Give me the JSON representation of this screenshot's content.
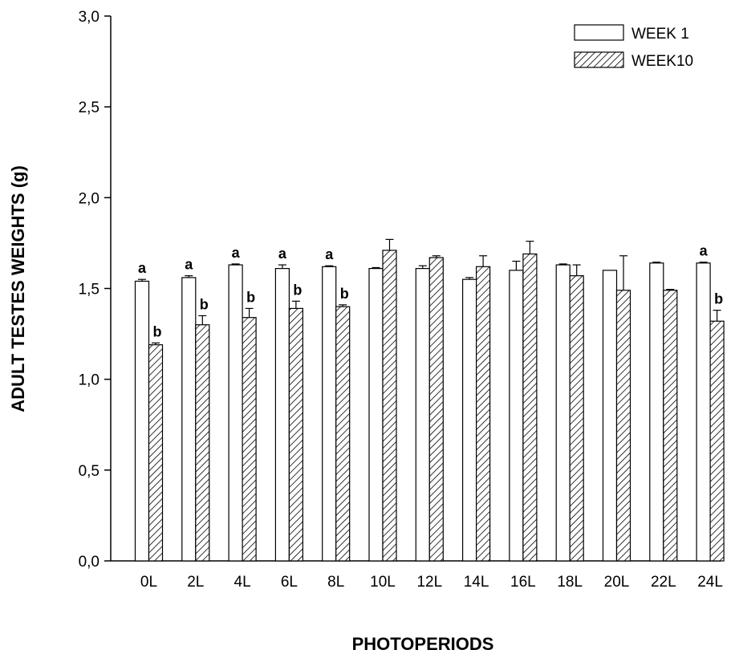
{
  "chart_data": {
    "type": "bar",
    "title": "",
    "xlabel": "PHOTOPERIODS",
    "ylabel": "ADULT TESTES WEIGHTS (g)",
    "ylim": [
      0,
      3.0
    ],
    "y_ticks": [
      "0,0",
      "0,5",
      "1,0",
      "1,5",
      "2,0",
      "2,5",
      "3,0"
    ],
    "categories": [
      "0L",
      "2L",
      "4L",
      "6L",
      "8L",
      "10L",
      "12L",
      "14L",
      "16L",
      "18L",
      "20L",
      "22L",
      "24L"
    ],
    "legend_position": "top-right",
    "series": [
      {
        "name": "WEEK 1",
        "fill": "white",
        "values": [
          1.54,
          1.56,
          1.63,
          1.61,
          1.62,
          1.61,
          1.61,
          1.55,
          1.6,
          1.63,
          1.6,
          1.64,
          1.64
        ],
        "errors": [
          0.01,
          0.01,
          0.005,
          0.02,
          0.005,
          0.005,
          0.015,
          0.01,
          0.05,
          0.005,
          0.0,
          0.005,
          0.005
        ],
        "annotations": [
          "a",
          "a",
          "a",
          "a",
          "a",
          "",
          "",
          "",
          "",
          "",
          "",
          "",
          "a"
        ]
      },
      {
        "name": "WEEK10",
        "fill": "hatched",
        "values": [
          1.19,
          1.3,
          1.34,
          1.39,
          1.4,
          1.71,
          1.67,
          1.62,
          1.69,
          1.57,
          1.49,
          1.49,
          1.32
        ],
        "errors": [
          0.01,
          0.05,
          0.05,
          0.04,
          0.01,
          0.06,
          0.01,
          0.06,
          0.07,
          0.06,
          0.19,
          0.005,
          0.06
        ],
        "annotations": [
          "b",
          "b",
          "b",
          "b",
          "b",
          "",
          "",
          "",
          "",
          "",
          "",
          "",
          "b"
        ]
      }
    ]
  }
}
